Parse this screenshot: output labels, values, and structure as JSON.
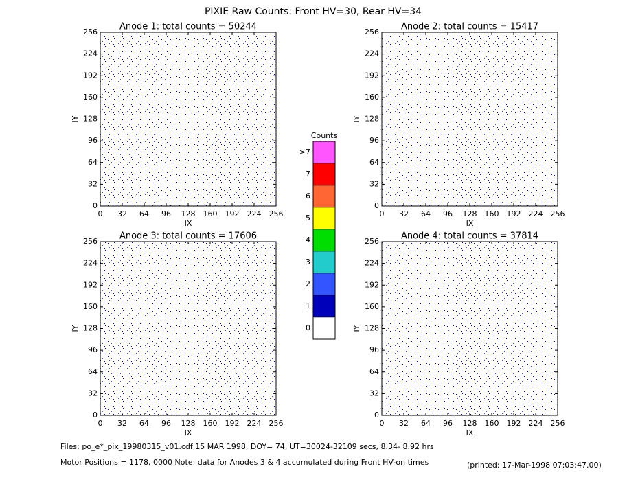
{
  "title": "PIXIE Raw Counts:  Front HV=30, Rear HV=34",
  "panels": [
    {
      "title": "Anode 1: total counts = 50244",
      "xlabel": "IX",
      "ylabel": "IY",
      "xlim": [
        0,
        256
      ],
      "ylim": [
        0,
        256
      ],
      "xticks": [
        0,
        32,
        64,
        96,
        128,
        160,
        192,
        224,
        256
      ],
      "yticks": [
        0,
        32,
        64,
        96,
        128,
        160,
        192,
        224,
        256
      ]
    },
    {
      "title": "Anode 2: total counts = 15417",
      "xlabel": "IX",
      "ylabel": "IY",
      "xlim": [
        0,
        256
      ],
      "ylim": [
        0,
        256
      ],
      "xticks": [
        0,
        32,
        64,
        96,
        128,
        160,
        192,
        224,
        256
      ],
      "yticks": [
        0,
        32,
        64,
        96,
        128,
        160,
        192,
        224,
        256
      ]
    },
    {
      "title": "Anode 3: total counts = 17606",
      "xlabel": "IX",
      "ylabel": "IY",
      "xlim": [
        0,
        256
      ],
      "ylim": [
        0,
        256
      ],
      "xticks": [
        0,
        32,
        64,
        96,
        128,
        160,
        192,
        224,
        256
      ],
      "yticks": [
        0,
        32,
        64,
        96,
        128,
        160,
        192,
        224,
        256
      ]
    },
    {
      "title": "Anode 4: total counts = 37814",
      "xlabel": "IX",
      "ylabel": "IY",
      "xlim": [
        0,
        256
      ],
      "ylim": [
        0,
        256
      ],
      "xticks": [
        0,
        32,
        64,
        96,
        128,
        160,
        192,
        224,
        256
      ],
      "yticks": [
        0,
        32,
        64,
        96,
        128,
        160,
        192,
        224,
        256
      ]
    }
  ],
  "colorbar": {
    "title": "Counts",
    "labels": [
      ">7",
      "7",
      "6",
      "5",
      "4",
      "3",
      "2",
      "1",
      "0"
    ],
    "colors": [
      "#ff55ff",
      "#ff0000",
      "#ff6633",
      "#ffff00",
      "#00dd00",
      "#22cccc",
      "#3355ff",
      "#0000bb",
      "#ffffff"
    ]
  },
  "footer": {
    "files": "Files: po_e*_pix_19980315_v01.cdf    15 MAR 1998, DOY= 74, UT=30024-32109 secs,  8.34- 8.92 hrs",
    "motor": "Motor Positions = 1178, 0000   Note: data for Anodes 3 & 4 accumulated during Front HV-on times",
    "printed": "(printed: 17-Mar-1998 07:03:47.00)"
  }
}
